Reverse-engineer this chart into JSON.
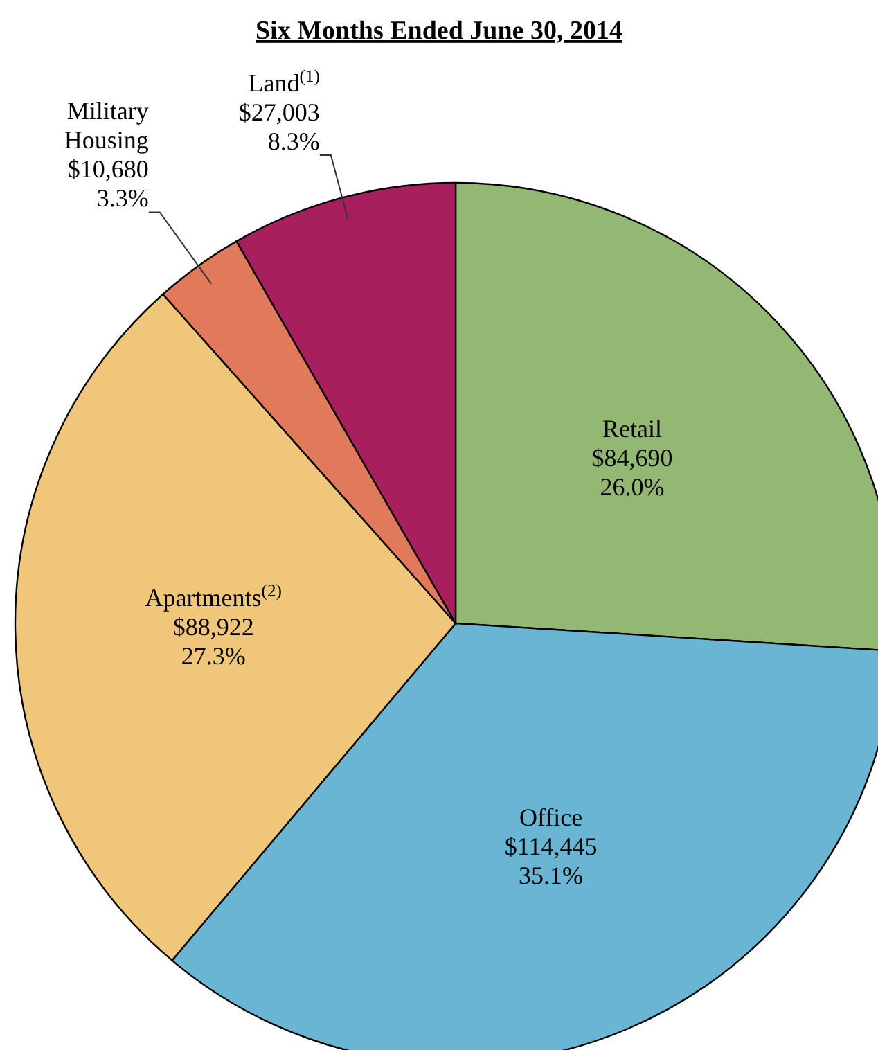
{
  "chart_data": {
    "type": "pie",
    "title": "Six Months Ended June 30, 2014",
    "categories": [
      "Retail",
      "Office",
      "Apartments$^{(2)}$",
      "Military Housing",
      "Land$^{(1)}$"
    ],
    "values": [
      84690,
      114445,
      88922,
      10680,
      27003
    ],
    "value_labels": [
      "$84,690\n26.0%",
      "$114,445\n35.1%",
      "$88,922\n27.3%",
      "$10,680\n3.3%",
      "$27,003\n8.3%"
    ],
    "colors": [
      "#93b874",
      "#6ab4d4",
      "#f0c77a",
      "#e07a5a",
      "#a81f5e"
    ],
    "legend": false
  }
}
